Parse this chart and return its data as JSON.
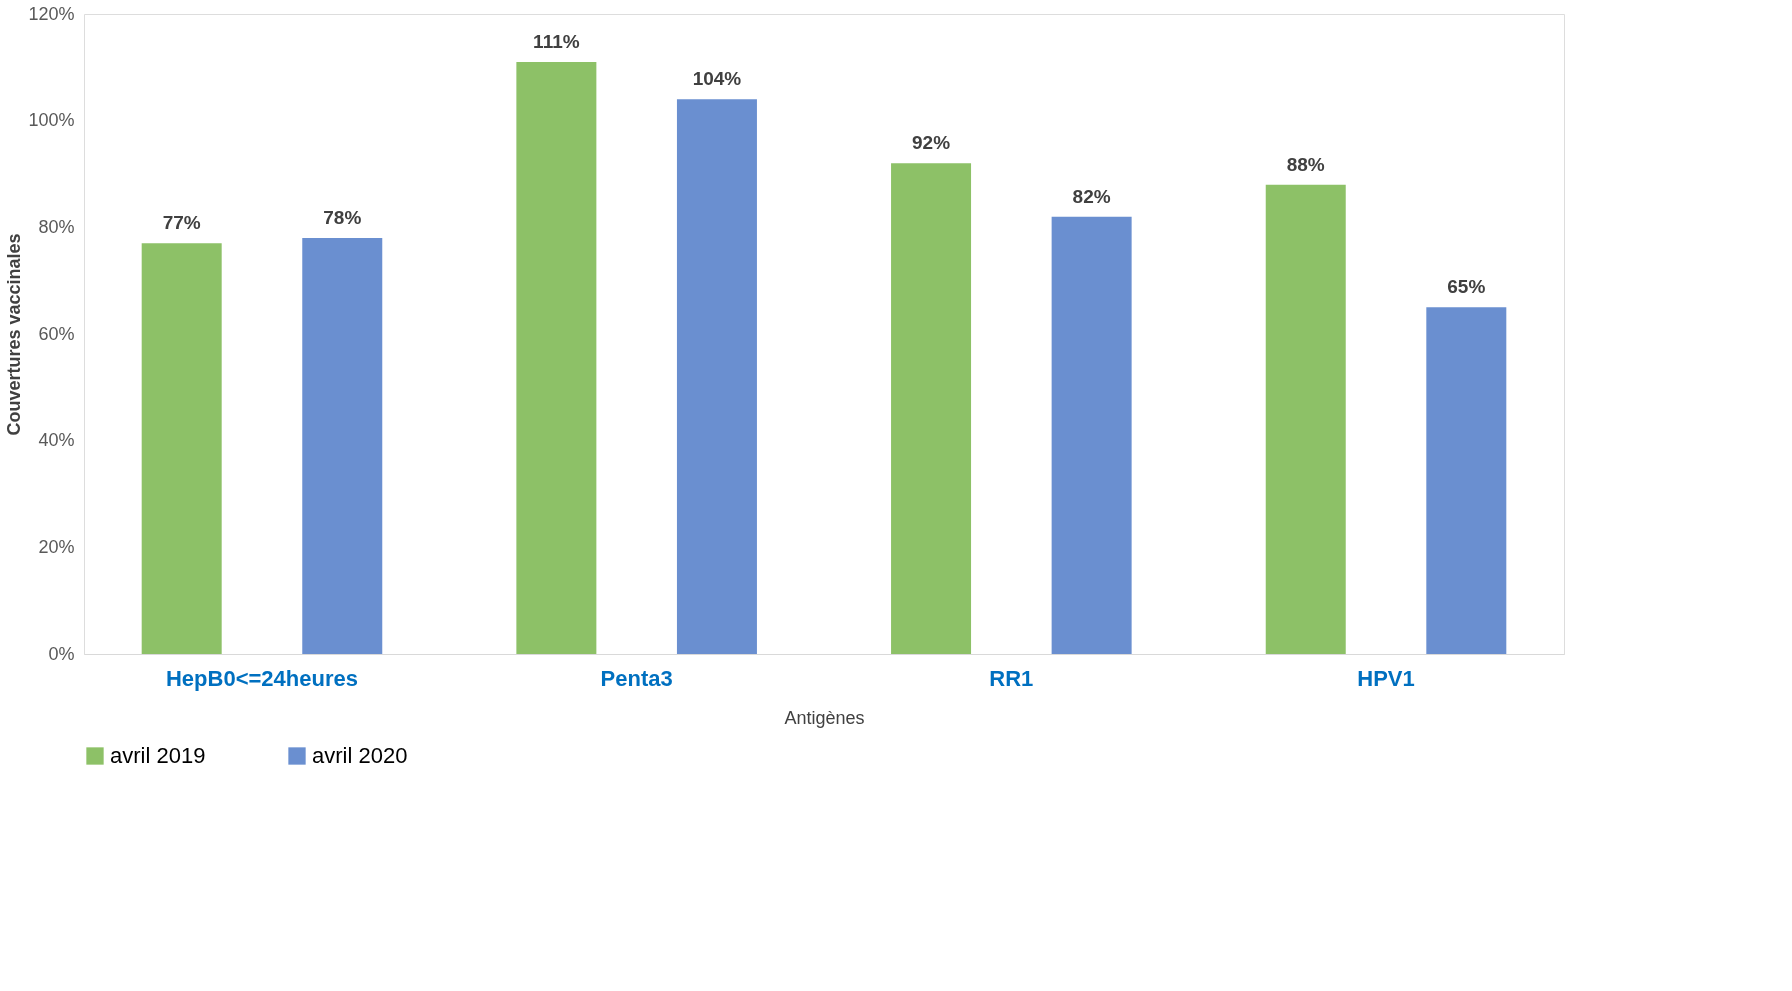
{
  "chart_data": {
    "type": "bar",
    "xlabel": "Antigènes",
    "ylabel": "Couvertures vaccinales",
    "categories": [
      "HepB0<=24heures",
      "Penta3",
      "RR1",
      "HPV1"
    ],
    "series": [
      {
        "name": "avril 2019",
        "color": "#8dc167",
        "values": [
          77,
          111,
          92,
          88
        ],
        "value_labels": [
          "77%",
          "111%",
          "92%",
          "88%"
        ]
      },
      {
        "name": "avril 2020",
        "color": "#6a8fd0",
        "values": [
          78,
          104,
          82,
          65
        ],
        "value_labels": [
          "78%",
          "104%",
          "82%",
          "65%"
        ]
      }
    ],
    "ylim": [
      0,
      120
    ],
    "yticks": [
      {
        "value": 0,
        "label": "0%"
      },
      {
        "value": 20,
        "label": "20%"
      },
      {
        "value": 40,
        "label": "40%"
      },
      {
        "value": 60,
        "label": "60%"
      },
      {
        "value": 80,
        "label": "80%"
      },
      {
        "value": 100,
        "label": "100%"
      },
      {
        "value": 120,
        "label": "120%"
      }
    ],
    "grid": false,
    "legend": "bottom"
  }
}
